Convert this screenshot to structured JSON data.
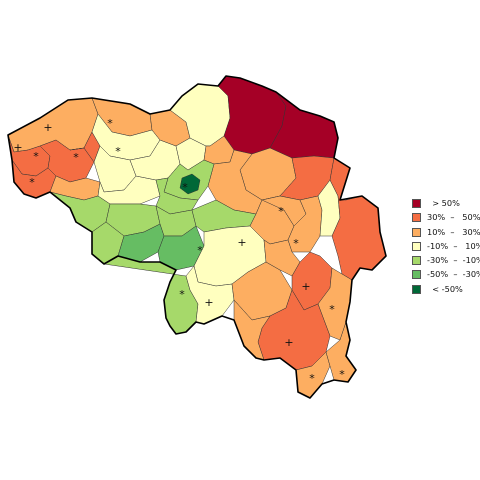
{
  "colors": {
    "gt50": "#a50026",
    "p30_50": "#f46d43",
    "p10_30": "#fdae61",
    "m10_10": "#ffffbf",
    "m30_m10": "#a6d96a",
    "m50_m30": "#66bd63",
    "lt_m50": "#006837"
  },
  "legend": {
    "items": [
      {
        "label": "  > 50%",
        "color": "#a50026"
      },
      {
        "label": "30%  –   50%",
        "color": "#f46d43"
      },
      {
        "label": "10%  –   30%",
        "color": "#fdae61"
      },
      {
        "label": "-10%  –   10%",
        "color": "#ffffbf"
      },
      {
        "label": "-30%  –  -10%",
        "color": "#a6d96a"
      },
      {
        "label": "-50%  –  -30%",
        "color": "#66bd63"
      },
      {
        "label": "  < -50%",
        "color": "#006837"
      }
    ]
  },
  "markers": {
    "plus": "+",
    "star": "*"
  }
}
